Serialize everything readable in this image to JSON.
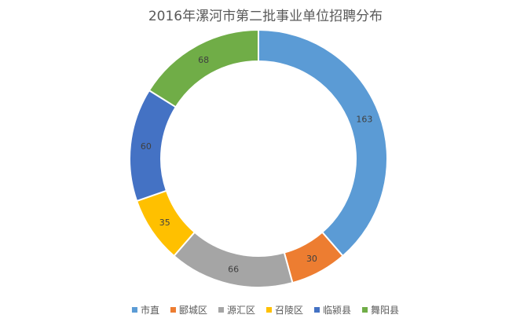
{
  "chart_data": {
    "type": "pie",
    "title": "2016年漯河市第二批事业单位招聘分布",
    "categories": [
      "市直",
      "郾城区",
      "源汇区",
      "召陵区",
      "临颍县",
      "舞阳县"
    ],
    "values": [
      163,
      30,
      66,
      35,
      60,
      68
    ],
    "colors": [
      "#5B9BD5",
      "#ED7D31",
      "#A5A5A5",
      "#FFC000",
      "#4472C4",
      "#70AD47"
    ],
    "style": "doughnut",
    "start_angle": "12 o'clock",
    "direction": "clockwise",
    "legend_position": "bottom",
    "data_labels": true
  }
}
